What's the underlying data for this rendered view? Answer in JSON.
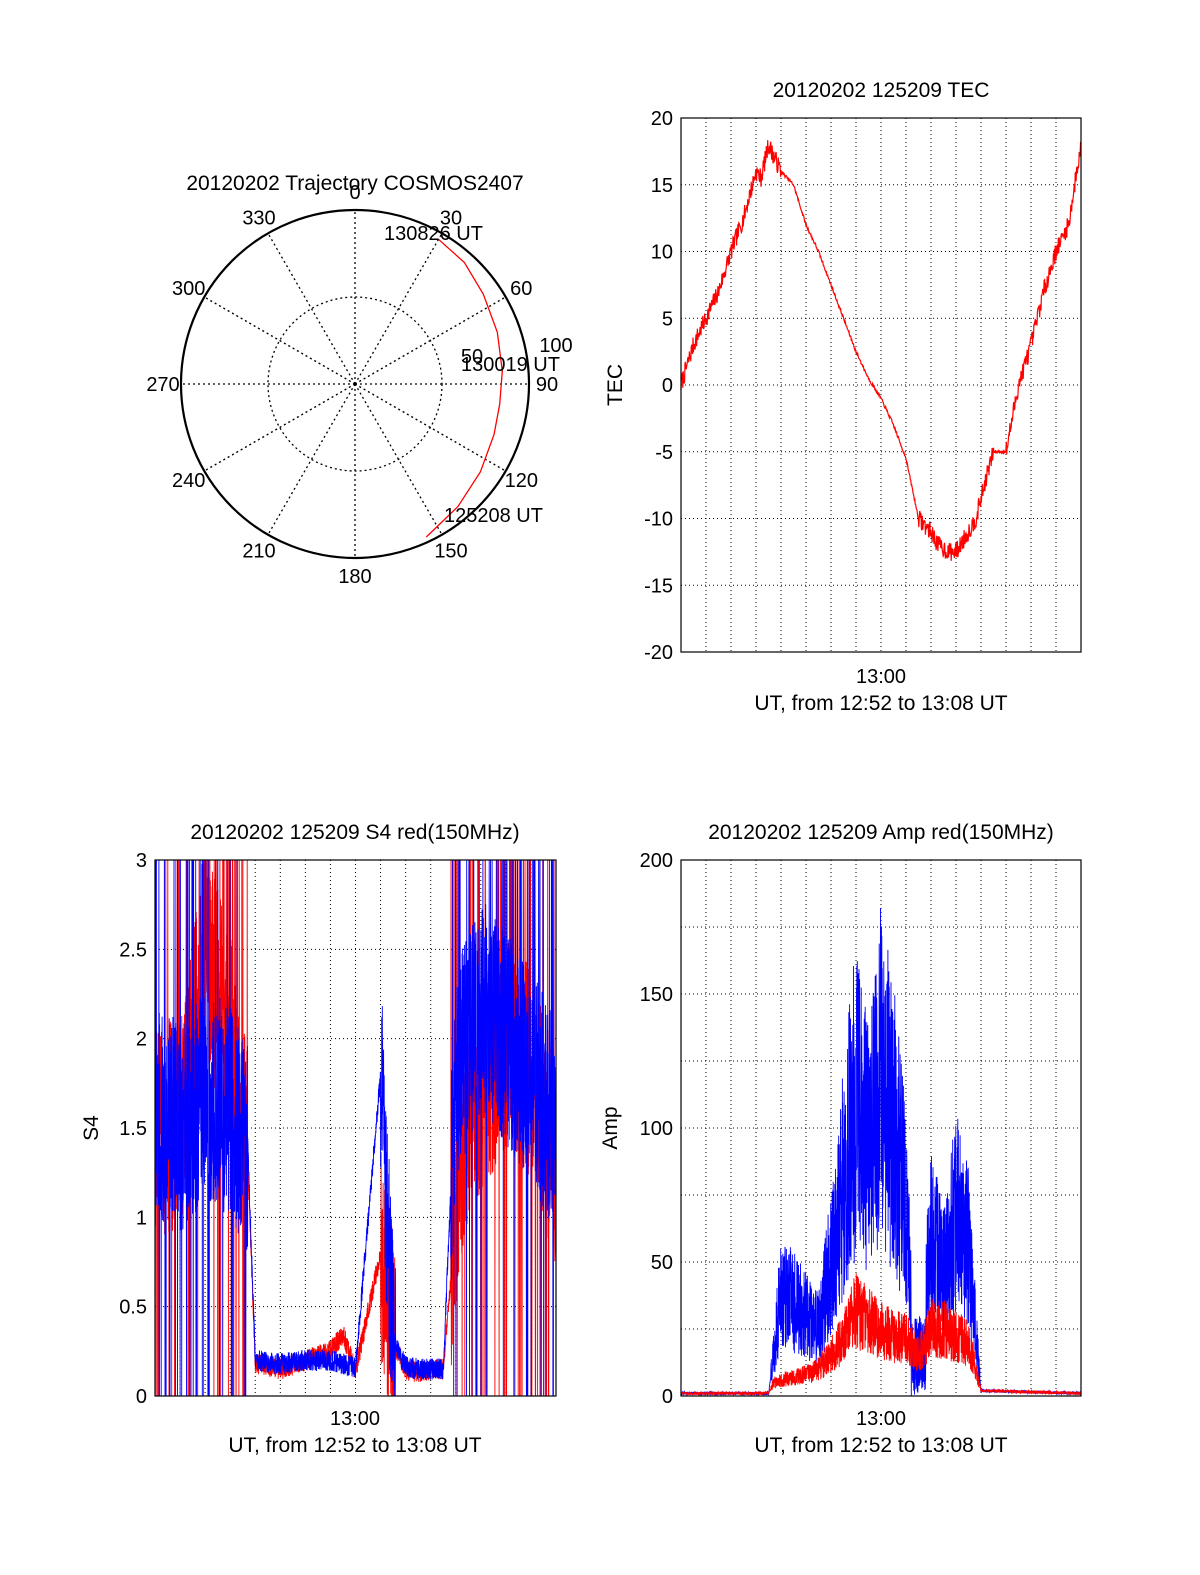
{
  "figure": {
    "polar": {
      "title": "20120202 Trajectory COSMOS2407",
      "angle_labels": [
        "0",
        "30",
        "60",
        "90",
        "120",
        "150",
        "180",
        "210",
        "240",
        "270",
        "300",
        "330"
      ],
      "radial_labels": [
        "50",
        "100"
      ],
      "time_labels": [
        "130826 UT",
        "130019 UT",
        "125208 UT"
      ]
    },
    "tec": {
      "title": "20120202 125209 TEC",
      "ylabel": "TEC",
      "xlabel": "UT, from 12:52 to 13:08 UT",
      "xtick": "13:00",
      "yticks": [
        "20",
        "15",
        "10",
        "5",
        "0",
        "-5",
        "-10",
        "-15",
        "-20"
      ]
    },
    "s4": {
      "title": "20120202 125209 S4 red(150MHz)",
      "ylabel": "S4",
      "xlabel": "UT, from 12:52 to 13:08 UT",
      "xtick": "13:00",
      "yticks": [
        "3",
        "2.5",
        "2",
        "1.5",
        "1",
        "0.5",
        "0"
      ]
    },
    "amp": {
      "title": "20120202 125209 Amp red(150MHz)",
      "ylabel": "Amp",
      "xlabel": "UT, from 12:52 to 13:08 UT",
      "xtick": "13:00",
      "yticks": [
        "200",
        "150",
        "100",
        "50",
        "0"
      ]
    }
  },
  "colors": {
    "red": "#ff0000",
    "blue": "#0000ff",
    "grid": "#000000"
  },
  "chart_data": [
    {
      "type": "scatter",
      "projection": "polar",
      "title": "20120202 Trajectory COSMOS2407",
      "angle_unit": "azimuth degrees (0 at top, clockwise)",
      "radial_unit": "zenith angle degrees",
      "rlim": [
        0,
        100
      ],
      "series": [
        {
          "points": [
            {
              "az": 155,
              "r": 97
            },
            {
              "az": 140,
              "r": 92
            },
            {
              "az": 125,
              "r": 88
            },
            {
              "az": 110,
              "r": 85
            },
            {
              "az": 98,
              "r": 84
            },
            {
              "az": 85,
              "r": 85
            },
            {
              "az": 70,
              "r": 87
            },
            {
              "az": 55,
              "r": 90
            },
            {
              "az": 42,
              "r": 94
            },
            {
              "az": 30,
              "r": 96
            }
          ]
        }
      ],
      "annotations": [
        {
          "text": "130826 UT",
          "az": 26,
          "r": 100
        },
        {
          "text": "130019 UT",
          "az": 85,
          "r": 85
        },
        {
          "text": "125208 UT",
          "az": 155,
          "r": 97
        }
      ]
    },
    {
      "type": "line",
      "title": "20120202 125209 TEC",
      "xlabel": "UT, from 12:52 to 13:08 UT",
      "ylabel": "TEC",
      "x_unit": "minutes since 12:52 UT",
      "xlim": [
        0,
        16
      ],
      "ylim": [
        -20,
        20
      ],
      "xticks": [
        {
          "value": 8,
          "label": "13:00"
        }
      ],
      "grid": true,
      "series": [
        {
          "x": [
            0,
            0.5,
            1,
            1.5,
            2,
            2.5,
            3,
            3.2,
            3.5,
            4,
            4.5,
            5,
            5.5,
            6,
            6.5,
            7,
            7.5,
            8,
            8.5,
            9,
            9.5,
            10,
            10.3,
            10.7,
            11,
            11.5,
            11.8,
            12.2,
            12.5,
            13,
            13.5,
            14,
            14.5,
            15,
            15.5,
            16
          ],
          "y": [
            0,
            3,
            5,
            7,
            10,
            12.5,
            16,
            15.5,
            18,
            16,
            15,
            12,
            10,
            7.5,
            5,
            2.5,
            0.5,
            -1,
            -3,
            -5.5,
            -10,
            -11,
            -12,
            -12.5,
            -12.5,
            -11,
            -10,
            -7,
            -5,
            -5,
            0,
            3,
            7,
            10,
            12,
            18
          ]
        }
      ]
    },
    {
      "type": "line",
      "title": "20120202 125209 S4 red(150MHz)",
      "xlabel": "UT, from 12:52 to 13:08 UT",
      "ylabel": "S4",
      "x_unit": "minutes since 12:52 UT",
      "xlim": [
        0,
        16
      ],
      "ylim": [
        0,
        3
      ],
      "xticks": [
        {
          "value": 8,
          "label": "13:00"
        }
      ],
      "grid": true,
      "series": [
        {
          "color": "red",
          "x": [
            0,
            1,
            2,
            3,
            3.7,
            4,
            5,
            6,
            7,
            7.5,
            8,
            9,
            9.5,
            10,
            10.5,
            11,
            11.5,
            12,
            12.5,
            13,
            14,
            15,
            16
          ],
          "y": [
            1.5,
            1.5,
            2.5,
            2.0,
            1.3,
            0.18,
            0.15,
            0.2,
            0.25,
            0.35,
            0.14,
            0.8,
            0.3,
            0.15,
            0.13,
            0.15,
            0.15,
            1.0,
            1.5,
            1.7,
            2.0,
            1.8,
            1.3
          ]
        },
        {
          "color": "blue",
          "x": [
            0,
            1,
            2,
            3,
            3.7,
            4,
            5,
            6,
            7,
            8,
            9,
            9.5,
            10,
            10.5,
            11,
            11.5,
            12,
            13,
            14,
            15,
            16
          ],
          "y": [
            1.6,
            1.5,
            1.7,
            1.6,
            1.4,
            0.2,
            0.18,
            0.2,
            0.2,
            0.16,
            1.8,
            0.3,
            0.17,
            0.15,
            0.15,
            0.15,
            1.8,
            2.2,
            2.0,
            1.8,
            1.5
          ]
        }
      ]
    },
    {
      "type": "line",
      "title": "20120202 125209 Amp red(150MHz)",
      "xlabel": "UT, from 12:52 to 13:08 UT",
      "ylabel": "Amp",
      "x_unit": "minutes since 12:52 UT",
      "xlim": [
        0,
        16
      ],
      "ylim": [
        0,
        200
      ],
      "xticks": [
        {
          "value": 8,
          "label": "13:00"
        }
      ],
      "grid": true,
      "series": [
        {
          "color": "blue",
          "x": [
            0,
            3.5,
            3.7,
            4,
            5,
            5.5,
            6,
            6.5,
            7,
            7.5,
            8,
            8.5,
            9,
            9.5,
            10,
            10.5,
            11,
            11.5,
            12,
            16
          ],
          "y": [
            1,
            1,
            15,
            40,
            30,
            25,
            50,
            80,
            110,
            90,
            120,
            100,
            70,
            5,
            60,
            45,
            70,
            55,
            2,
            1
          ]
        },
        {
          "color": "red",
          "x": [
            0,
            3.5,
            3.7,
            4,
            5,
            5.5,
            6,
            6.5,
            7,
            7.5,
            8,
            8.5,
            9,
            9.5,
            10,
            10.5,
            11,
            11.5,
            12,
            16
          ],
          "y": [
            1,
            1,
            5,
            6,
            8,
            10,
            15,
            22,
            32,
            28,
            25,
            22,
            22,
            15,
            25,
            25,
            22,
            20,
            2,
            1
          ]
        }
      ]
    }
  ]
}
